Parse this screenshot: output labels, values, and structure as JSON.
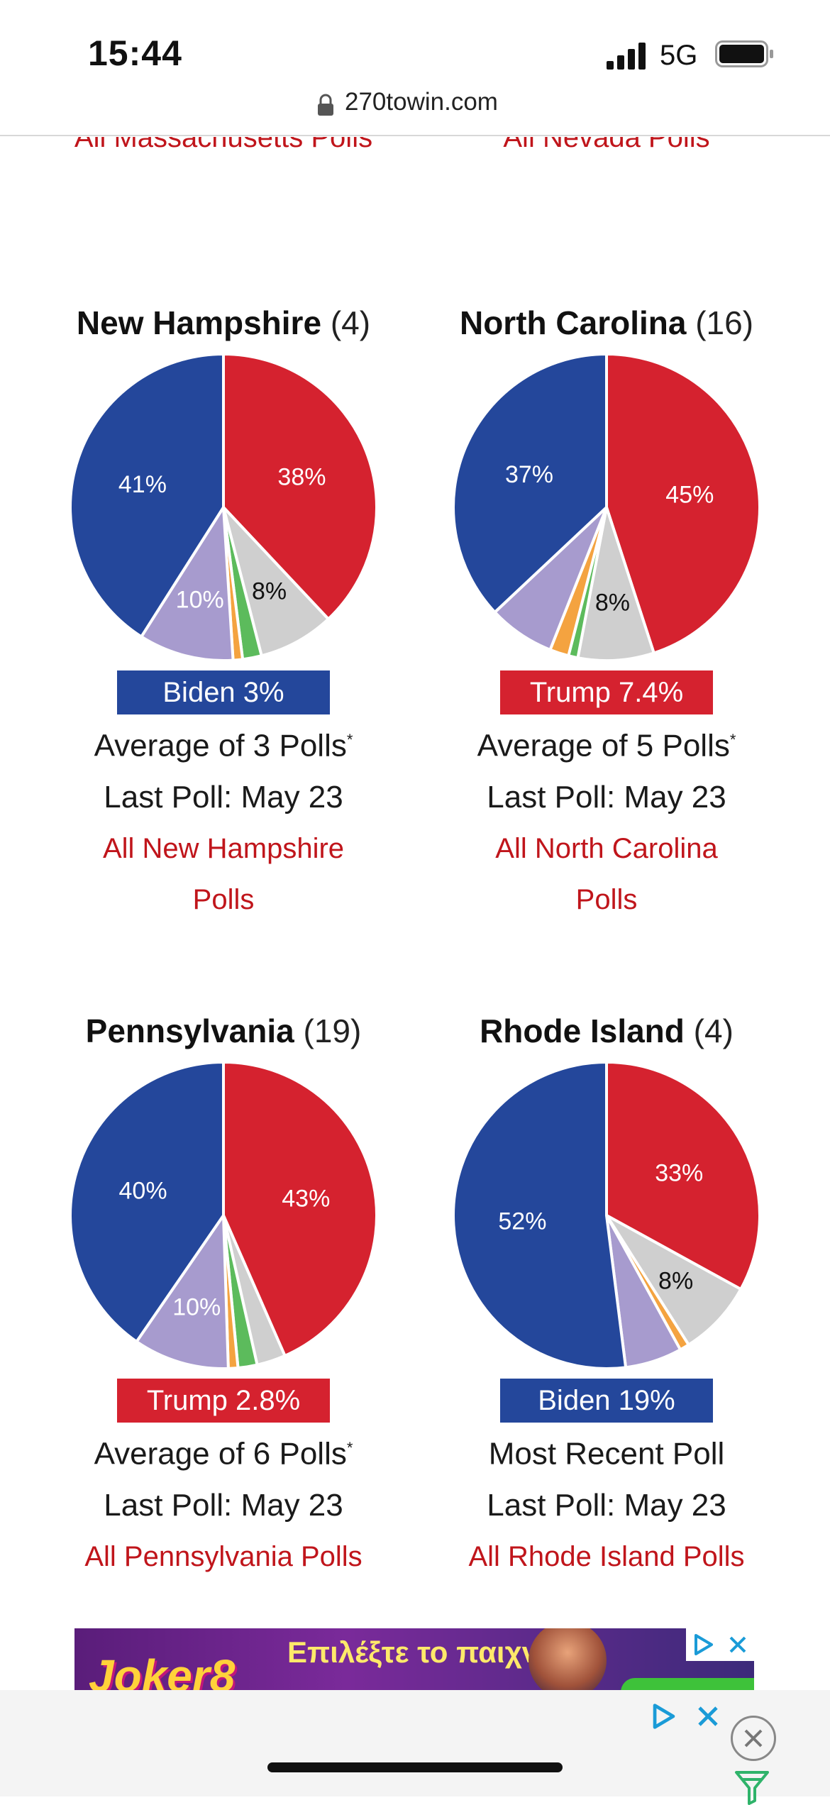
{
  "status_bar": {
    "time": "15:44",
    "network": "5G"
  },
  "url_bar": {
    "domain": "270towin.com"
  },
  "top_links": {
    "left": "All Massachusetts Polls",
    "right": "All Nevada Polls"
  },
  "states": [
    {
      "name": "New Hampshire",
      "ev": "(4)",
      "badge": "Biden 3%",
      "badge_color": "#24479b",
      "poll_count": "Average of 3 Polls",
      "footnote": "*",
      "last_poll": "Last Poll: May 23",
      "link": "All New Hampshire Polls",
      "slices": [
        {
          "name": "Trump",
          "value": 38,
          "color": "#d5222f",
          "label": "38%",
          "label_color": "#ffffff"
        },
        {
          "name": "Undecided",
          "value": 8,
          "color": "#cfcfcf",
          "label": "8%",
          "label_color": "#111111"
        },
        {
          "name": "Green",
          "value": 2,
          "color": "#5cbb5c",
          "label": "",
          "label_color": "#111111"
        },
        {
          "name": "Libertarian",
          "value": 1,
          "color": "#f4a340",
          "label": "",
          "label_color": "#111111"
        },
        {
          "name": "Independent",
          "value": 10,
          "color": "#a79bce",
          "label": "10%",
          "label_color": "#ffffff"
        },
        {
          "name": "Biden",
          "value": 41,
          "color": "#24479b",
          "label": "41%",
          "label_color": "#ffffff"
        }
      ]
    },
    {
      "name": "North Carolina",
      "ev": "(16)",
      "badge": "Trump 7.4%",
      "badge_color": "#d5222f",
      "poll_count": "Average of 5 Polls",
      "footnote": "*",
      "last_poll": "Last Poll: May 23",
      "link": "All North Carolina Polls",
      "slices": [
        {
          "name": "Trump",
          "value": 45,
          "color": "#d5222f",
          "label": "45%",
          "label_color": "#ffffff"
        },
        {
          "name": "Undecided",
          "value": 8,
          "color": "#cfcfcf",
          "label": "8%",
          "label_color": "#111111"
        },
        {
          "name": "Green",
          "value": 1,
          "color": "#5cbb5c",
          "label": "",
          "label_color": "#111111"
        },
        {
          "name": "Libertarian",
          "value": 2,
          "color": "#f4a340",
          "label": "",
          "label_color": "#111111"
        },
        {
          "name": "Independent",
          "value": 7,
          "color": "#a79bce",
          "label": "",
          "label_color": "#ffffff"
        },
        {
          "name": "Biden",
          "value": 37,
          "color": "#24479b",
          "label": "37%",
          "label_color": "#ffffff"
        }
      ]
    },
    {
      "name": "Pennsylvania",
      "ev": "(19)",
      "badge": "Trump 2.8%",
      "badge_color": "#d5222f",
      "poll_count": "Average of 6 Polls",
      "footnote": "*",
      "last_poll": "Last Poll: May 23",
      "link": "All Pennsylvania Polls",
      "slices": [
        {
          "name": "Trump",
          "value": 43,
          "color": "#d5222f",
          "label": "43%",
          "label_color": "#ffffff"
        },
        {
          "name": "Undecided",
          "value": 3,
          "color": "#cfcfcf",
          "label": "",
          "label_color": "#111111"
        },
        {
          "name": "Green",
          "value": 2,
          "color": "#5cbb5c",
          "label": "",
          "label_color": "#111111"
        },
        {
          "name": "Libertarian",
          "value": 1,
          "color": "#f4a340",
          "label": "",
          "label_color": "#111111"
        },
        {
          "name": "Independent",
          "value": 10,
          "color": "#a79bce",
          "label": "10%",
          "label_color": "#ffffff"
        },
        {
          "name": "Biden",
          "value": 40,
          "color": "#24479b",
          "label": "40%",
          "label_color": "#ffffff"
        }
      ]
    },
    {
      "name": "Rhode Island",
      "ev": "(4)",
      "badge": "Biden 19%",
      "badge_color": "#24479b",
      "poll_count": "Most Recent Poll",
      "footnote": "",
      "last_poll": "Last Poll: May 23",
      "link": "All Rhode Island Polls",
      "slices": [
        {
          "name": "Trump",
          "value": 33,
          "color": "#d5222f",
          "label": "33%",
          "label_color": "#ffffff"
        },
        {
          "name": "Undecided",
          "value": 8,
          "color": "#cfcfcf",
          "label": "8%",
          "label_color": "#111111"
        },
        {
          "name": "Libertarian",
          "value": 1,
          "color": "#f4a340",
          "label": "",
          "label_color": "#111111"
        },
        {
          "name": "Independent",
          "value": 6,
          "color": "#a79bce",
          "label": "",
          "label_color": "#ffffff"
        },
        {
          "name": "Biden",
          "value": 52,
          "color": "#24479b",
          "label": "52%",
          "label_color": "#ffffff"
        }
      ]
    }
  ],
  "ad": {
    "logo": "Joker8",
    "text": "Επιλέξτε το παιχνίδι"
  },
  "colors": {
    "link": "#c0151b",
    "democrat": "#24479b",
    "republican": "#d5222f"
  }
}
